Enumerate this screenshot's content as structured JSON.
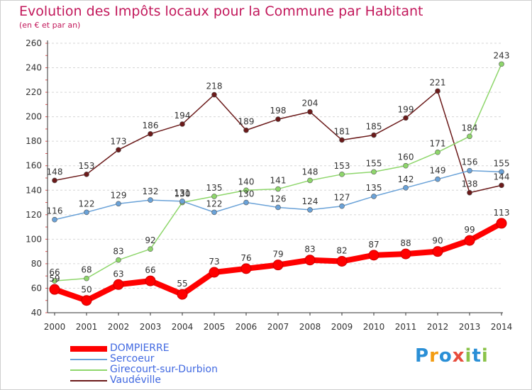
{
  "header": {
    "title": "Evolution des Impôts locaux pour la Commune par Habitant",
    "subtitle": "(en € et par an)"
  },
  "chart_data": {
    "type": "line",
    "x": [
      "2000",
      "2001",
      "2002",
      "2003",
      "2004",
      "2005",
      "2006",
      "2007",
      "2008",
      "2009",
      "2010",
      "2011",
      "2012",
      "2013",
      "2014"
    ],
    "ylim": [
      40,
      260
    ],
    "yticks": [
      40,
      60,
      80,
      100,
      120,
      140,
      160,
      180,
      200,
      220,
      240,
      260
    ],
    "grid": "horizontal-dashed",
    "legend_position": "bottom-left",
    "series": [
      {
        "name": "Vaudéville",
        "color": "#6b1a1a",
        "values": [
          148,
          153,
          173,
          186,
          194,
          218,
          189,
          198,
          204,
          181,
          185,
          199,
          221,
          138,
          144
        ]
      },
      {
        "name": "Girecourt-sur-Durbion",
        "color": "#8ed66b",
        "values": [
          66,
          68,
          83,
          92,
          130,
          135,
          140,
          141,
          148,
          153,
          155,
          160,
          171,
          184,
          243
        ]
      },
      {
        "name": "Sercoeur",
        "color": "#6aa2d8",
        "values": [
          116,
          122,
          129,
          132,
          131,
          122,
          130,
          126,
          124,
          127,
          135,
          142,
          149,
          156,
          155
        ]
      },
      {
        "name": "DOMPIERRE",
        "color": "#ff0000",
        "values": [
          59,
          50,
          63,
          66,
          55,
          73,
          76,
          79,
          83,
          82,
          87,
          88,
          90,
          99,
          113
        ]
      }
    ]
  },
  "legend": {
    "items": [
      {
        "name": "DOMPIERRE",
        "color": "#ff0000",
        "thickness": 8
      },
      {
        "name": "Sercoeur",
        "color": "#6aa2d8",
        "thickness": 2
      },
      {
        "name": "Girecourt-sur-Durbion",
        "color": "#8ed66b",
        "thickness": 2
      },
      {
        "name": "Vaudéville",
        "color": "#6b1a1a",
        "thickness": 2
      }
    ]
  },
  "logo": {
    "letters": [
      {
        "ch": "P",
        "color": "#2a8fd6"
      },
      {
        "ch": "r",
        "color": "#f39c12"
      },
      {
        "ch": "o",
        "color": "#2a8fd6"
      },
      {
        "ch": "x",
        "color": "#e74c3c"
      },
      {
        "ch": "i",
        "color": "#8bc34a"
      },
      {
        "ch": "t",
        "color": "#2a8fd6"
      },
      {
        "ch": "i",
        "color": "#8bc34a"
      }
    ]
  }
}
